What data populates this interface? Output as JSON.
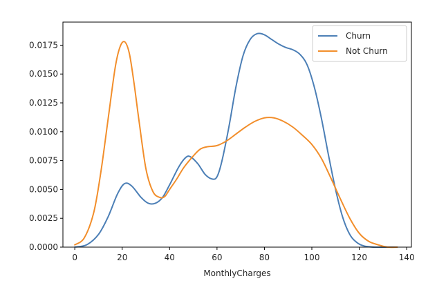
{
  "chart_data": {
    "type": "line",
    "title": "",
    "xlabel": "MonthlyCharges",
    "ylabel": "",
    "xlim": [
      -5,
      142
    ],
    "ylim": [
      0,
      0.0195
    ],
    "xticks": [
      0,
      20,
      40,
      60,
      80,
      100,
      120,
      140
    ],
    "yticks": [
      0.0,
      0.0025,
      0.005,
      0.0075,
      0.01,
      0.0125,
      0.015,
      0.0175
    ],
    "ytick_labels": [
      "0.0000",
      "0.0025",
      "0.0050",
      "0.0075",
      "0.0100",
      "0.0125",
      "0.0150",
      "0.0175"
    ],
    "grid": false,
    "legend_position": "upper right",
    "series": [
      {
        "name": "Churn",
        "color": "#4c7fb6",
        "x": [
          0,
          5,
          10,
          14,
          18,
          21,
          24,
          28,
          31,
          34,
          37,
          40,
          44,
          47,
          49,
          52,
          55,
          58,
          60,
          62,
          65,
          68,
          71,
          74,
          77,
          80,
          83,
          86,
          89,
          92,
          95,
          98,
          101,
          104,
          107,
          110,
          113,
          116,
          119,
          122,
          126,
          130,
          136
        ],
        "y": [
          0.0,
          0.0002,
          0.0011,
          0.0026,
          0.0046,
          0.0055,
          0.0053,
          0.0043,
          0.0038,
          0.0038,
          0.0043,
          0.0054,
          0.007,
          0.0078,
          0.0078,
          0.0072,
          0.0063,
          0.0059,
          0.0061,
          0.0074,
          0.0104,
          0.0139,
          0.0166,
          0.018,
          0.0185,
          0.0184,
          0.018,
          0.0176,
          0.0173,
          0.0171,
          0.0167,
          0.0158,
          0.0139,
          0.0112,
          0.008,
          0.005,
          0.0026,
          0.0011,
          0.0004,
          0.0001,
          0.0,
          0.0,
          0.0
        ]
      },
      {
        "name": "Not Churn",
        "color": "#f28e2b",
        "x": [
          0,
          4,
          8,
          11,
          14,
          17,
          19,
          21,
          23,
          25,
          27,
          30,
          33,
          36,
          38,
          40,
          43,
          46,
          50,
          53,
          56,
          60,
          64,
          68,
          72,
          76,
          80,
          84,
          88,
          92,
          96,
          100,
          104,
          108,
          112,
          116,
          120,
          124,
          128,
          132,
          136
        ],
        "y": [
          0.0002,
          0.0008,
          0.003,
          0.0065,
          0.011,
          0.0155,
          0.0173,
          0.0178,
          0.0168,
          0.0142,
          0.0111,
          0.0068,
          0.0048,
          0.0043,
          0.0044,
          0.005,
          0.0059,
          0.0069,
          0.0079,
          0.0085,
          0.0087,
          0.0088,
          0.0092,
          0.0098,
          0.0104,
          0.0109,
          0.0112,
          0.0112,
          0.0109,
          0.0104,
          0.0097,
          0.0089,
          0.0077,
          0.006,
          0.0042,
          0.0025,
          0.0012,
          0.0005,
          0.0002,
          0.0,
          0.0
        ]
      }
    ]
  }
}
